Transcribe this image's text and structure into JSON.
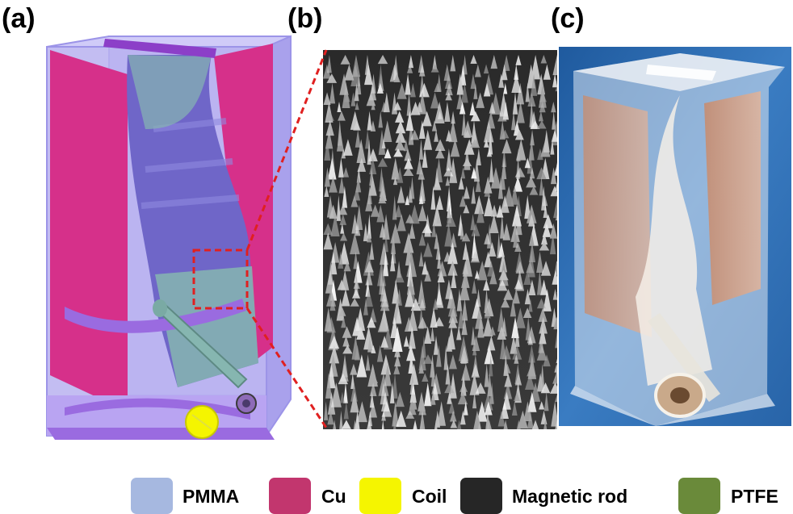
{
  "panels": {
    "a": "(a)",
    "b": "(b)",
    "c": "(c)"
  },
  "legend": [
    {
      "label": "PMMA",
      "color": "#a6b8e0"
    },
    {
      "label": "Cu",
      "color": "#c2366e"
    },
    {
      "label": "Coil",
      "color": "#f5f500"
    },
    {
      "label": "Magnetic rod",
      "color": "#262626"
    },
    {
      "label": "PTFE",
      "color": "#6a8a3a"
    }
  ],
  "colors": {
    "pmma_box": "#b9b2f0",
    "cu_plate": "#d6308a",
    "ptfe_film": "#7fb2b0",
    "zoom_line": "#e02020"
  }
}
